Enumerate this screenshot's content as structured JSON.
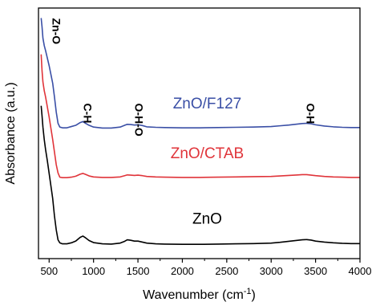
{
  "chart_data": {
    "type": "line",
    "xlabel": "Wavenumber (cm",
    "xlabel_sup": "-1",
    "xlabel_end": ")",
    "ylabel": "Absorbance (a.u.)",
    "xlim": [
      380,
      4000
    ],
    "ylim": [
      0,
      100
    ],
    "x_ticks": [
      500,
      1000,
      1500,
      2000,
      2500,
      3000,
      3500,
      4000
    ],
    "x_tick_labels": [
      "500",
      "1000",
      "1500",
      "2000",
      "2500",
      "3000",
      "3500",
      "4000"
    ],
    "y_ticks_shown": false,
    "grid": false,
    "series": [
      {
        "name": "ZnO/F127",
        "color": "#3a4fa6",
        "x": [
          410,
          420,
          430,
          445,
          460,
          480,
          500,
          520,
          540,
          560,
          580,
          600,
          620,
          650,
          700,
          750,
          800,
          850,
          880,
          910,
          950,
          1000,
          1100,
          1200,
          1300,
          1350,
          1380,
          1420,
          1460,
          1500,
          1550,
          1600,
          1700,
          1800,
          2000,
          2200,
          2400,
          2600,
          2800,
          3000,
          3100,
          3200,
          3300,
          3350,
          3400,
          3450,
          3500,
          3600,
          3700,
          3800,
          3900,
          4000
        ],
        "y": [
          96,
          92.5,
          88,
          85,
          83,
          80,
          77,
          73.5,
          70,
          64.5,
          58.5,
          54,
          52.5,
          52.2,
          52.2,
          52.7,
          53.2,
          54.3,
          54.7,
          54,
          53.2,
          52.5,
          52.1,
          52.1,
          52.5,
          53.2,
          53.6,
          53.5,
          53.3,
          53.4,
          53.1,
          52.6,
          52.4,
          52.3,
          52.2,
          52.2,
          52.3,
          52.4,
          52.5,
          52.7,
          53,
          53.3,
          53.7,
          53.9,
          54,
          53.8,
          53.4,
          52.9,
          52.6,
          52.4,
          52.3,
          52.3
        ]
      },
      {
        "name": "ZnO/CTAB",
        "color": "#e0343a",
        "x": [
          410,
          420,
          430,
          445,
          460,
          480,
          500,
          520,
          540,
          560,
          580,
          600,
          620,
          650,
          700,
          750,
          800,
          850,
          880,
          910,
          950,
          1000,
          1100,
          1200,
          1300,
          1350,
          1380,
          1420,
          1460,
          1500,
          1550,
          1600,
          1700,
          1800,
          2000,
          2200,
          2400,
          2600,
          2800,
          3000,
          3100,
          3200,
          3300,
          3350,
          3400,
          3450,
          3500,
          3600,
          3700,
          3800,
          3900,
          4000
        ],
        "y": [
          81.5,
          75,
          70.5,
          67,
          64.5,
          60.5,
          56.5,
          52,
          47.5,
          42.5,
          37.5,
          34.2,
          32.5,
          32.3,
          32.3,
          32.5,
          32.9,
          33.7,
          34,
          33.6,
          33,
          32.6,
          32.4,
          32.4,
          32.6,
          33.1,
          33.4,
          33.3,
          33.2,
          33.3,
          33.1,
          32.8,
          32.6,
          32.5,
          32.4,
          32.4,
          32.5,
          32.6,
          32.7,
          32.8,
          33,
          33.2,
          33.4,
          33.5,
          33.5,
          33.3,
          33.1,
          32.8,
          32.6,
          32.5,
          32.4,
          32.4
        ]
      },
      {
        "name": "ZnO",
        "color": "#000000",
        "x": [
          410,
          420,
          430,
          445,
          460,
          480,
          500,
          520,
          540,
          560,
          580,
          600,
          620,
          650,
          700,
          750,
          800,
          850,
          880,
          910,
          950,
          1000,
          1100,
          1200,
          1300,
          1350,
          1380,
          1420,
          1460,
          1500,
          1550,
          1600,
          1700,
          1800,
          2000,
          2200,
          2400,
          2600,
          2800,
          3000,
          3100,
          3200,
          3300,
          3350,
          3400,
          3450,
          3500,
          3600,
          3700,
          3800,
          3900,
          4000
        ],
        "y": [
          61,
          57,
          52.5,
          47.5,
          43.5,
          39,
          34,
          29,
          24,
          17,
          11.5,
          7.5,
          6.3,
          5.9,
          5.9,
          6.3,
          7,
          8.5,
          9,
          8.3,
          7.2,
          6.4,
          5.9,
          5.8,
          6.2,
          6.9,
          7.5,
          7.3,
          7,
          7,
          6.6,
          6.2,
          5.9,
          5.8,
          5.7,
          5.7,
          5.8,
          5.9,
          6,
          6.2,
          6.5,
          6.9,
          7.3,
          7.5,
          7.6,
          7.4,
          7,
          6.6,
          6.3,
          6.1,
          6,
          6
        ]
      }
    ],
    "series_labels": [
      {
        "text": "ZnO/F127",
        "series": 0,
        "x": 2280,
        "y": 60
      },
      {
        "text": "ZnO/CTAB",
        "series": 1,
        "x": 2280,
        "y": 40
      },
      {
        "text": "ZnO",
        "series": 2,
        "x": 2280,
        "y": 14
      }
    ],
    "annotations": [
      {
        "text": "Zn-O",
        "x": 540,
        "y": 96
      },
      {
        "text": "C-H",
        "x": 890,
        "y": 62
      },
      {
        "text": "O-H-O",
        "x": 1470,
        "y": 62
      },
      {
        "text": "O-H",
        "x": 3400,
        "y": 62
      }
    ]
  }
}
